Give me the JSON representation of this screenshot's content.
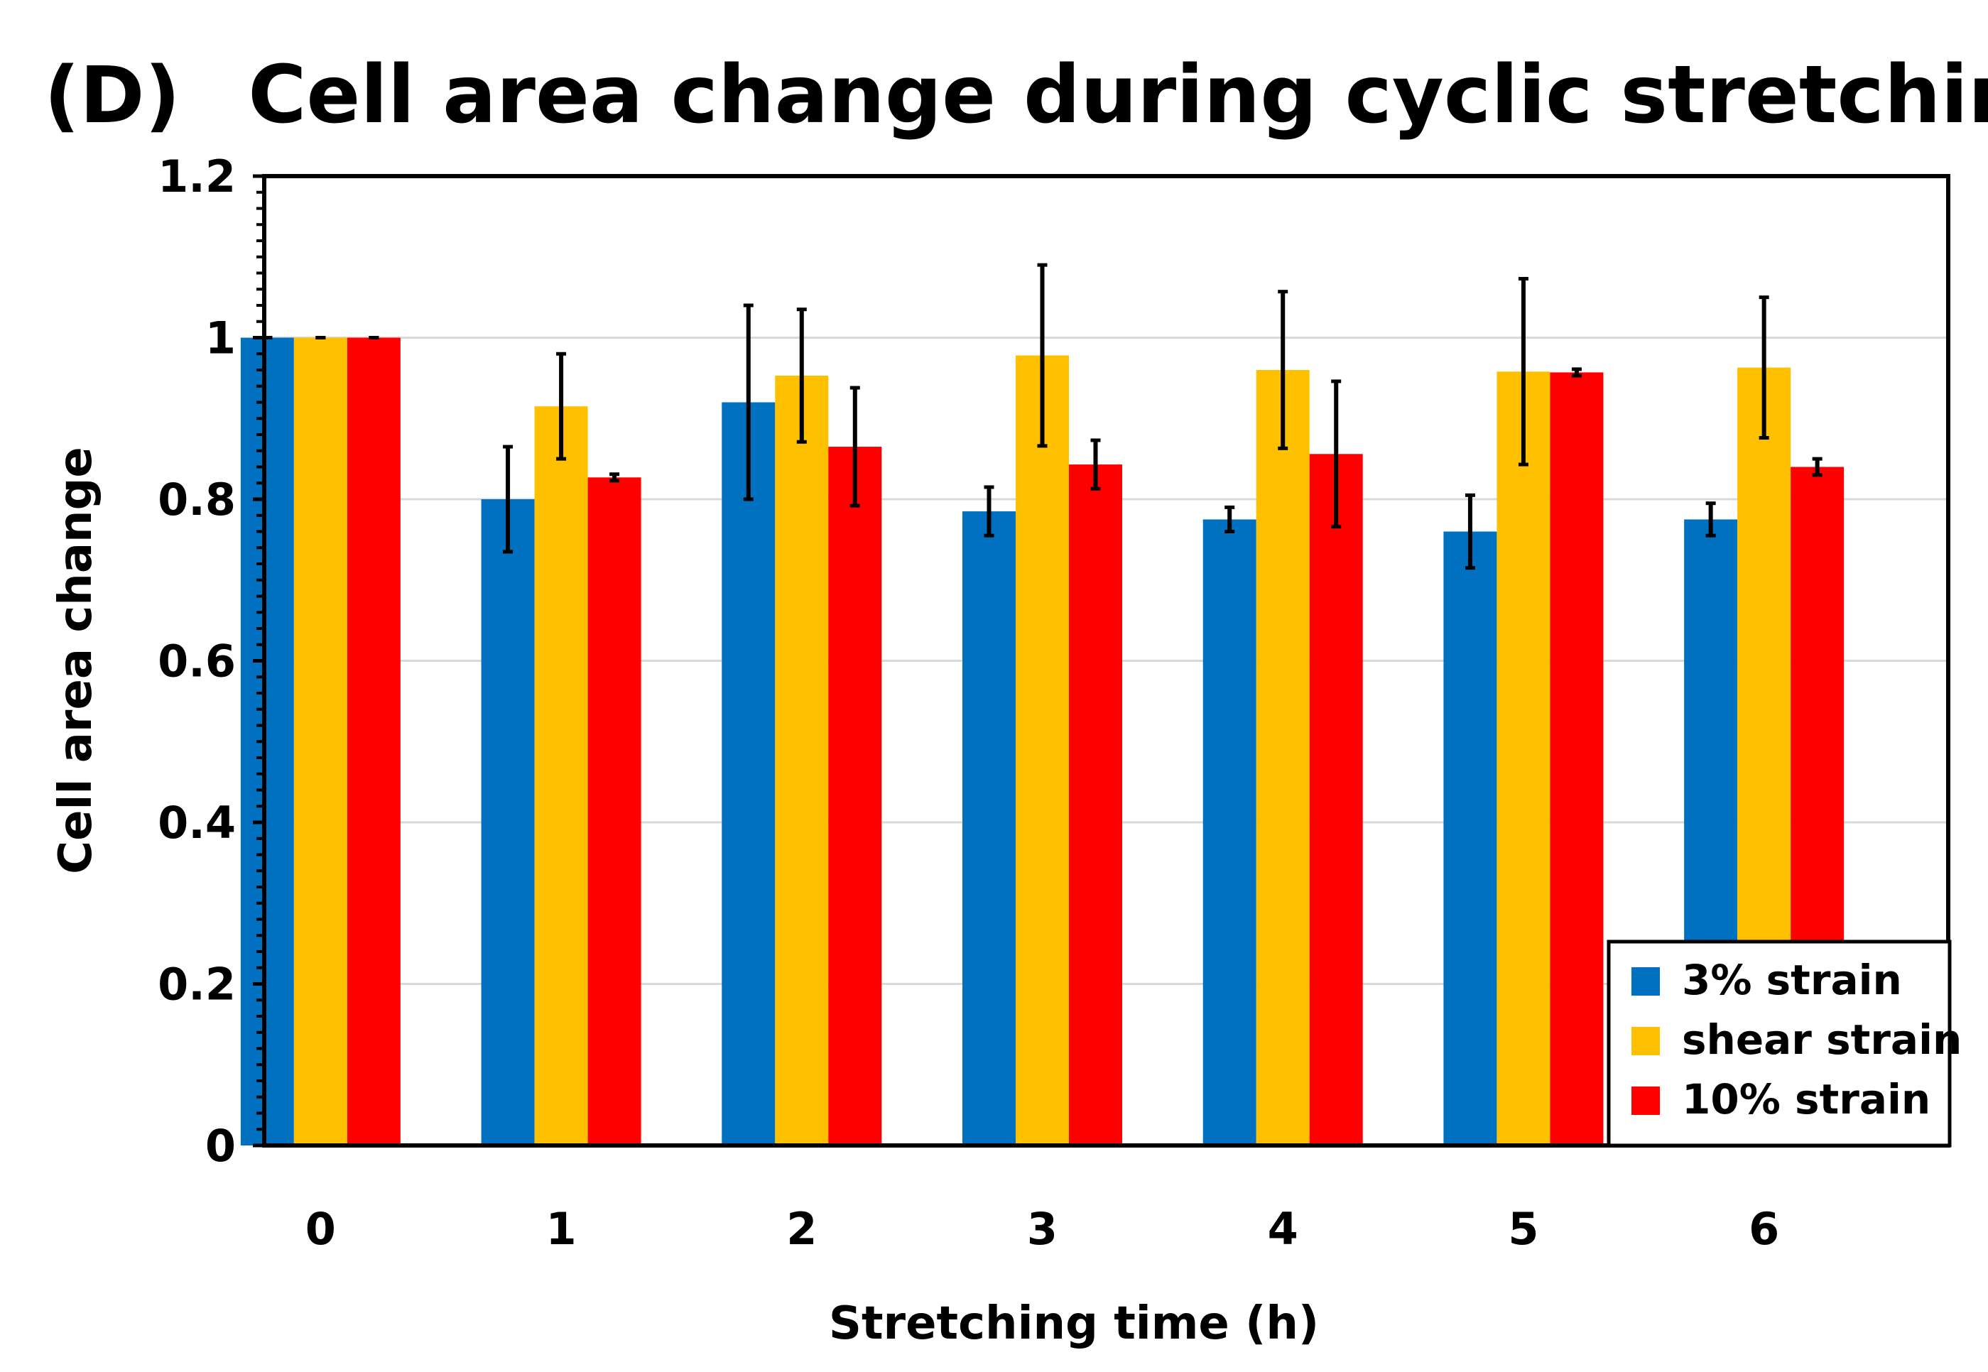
{
  "chart_data": {
    "type": "bar",
    "panel_label": "(D)",
    "title": "Cell area change during cyclic stretching",
    "xlabel": "Stretching time (h)",
    "ylabel": "Cell area change",
    "ylim": [
      0,
      1.2
    ],
    "yticks": [
      "0",
      "0.2",
      "0.4",
      "0.6",
      "0.8",
      "1",
      "1.2"
    ],
    "ytick_values": [
      0,
      0.2,
      0.4,
      0.6,
      0.8,
      1.0,
      1.2
    ],
    "grid": true,
    "legend_position": "bottom-right",
    "categories": [
      "0",
      "1",
      "2",
      "3",
      "4",
      "5",
      "6"
    ],
    "series": [
      {
        "name": "3% strain",
        "color": "#0070C0",
        "values": [
          1.0,
          0.8,
          0.92,
          0.785,
          0.775,
          0.76,
          0.775
        ],
        "errors": [
          0.0,
          0.065,
          0.12,
          0.03,
          0.015,
          0.045,
          0.02
        ]
      },
      {
        "name": "shear strain",
        "color": "#FFC000",
        "values": [
          1.0,
          0.915,
          0.953,
          0.978,
          0.96,
          0.958,
          0.963
        ],
        "errors": [
          0.0,
          0.065,
          0.082,
          0.112,
          0.097,
          0.115,
          0.087
        ]
      },
      {
        "name": "10% strain",
        "color": "#FF0000",
        "values": [
          1.0,
          0.827,
          0.865,
          0.843,
          0.856,
          0.957,
          0.84
        ],
        "errors": [
          0.0,
          0.004,
          0.073,
          0.03,
          0.09,
          0.004,
          0.01
        ]
      }
    ]
  }
}
